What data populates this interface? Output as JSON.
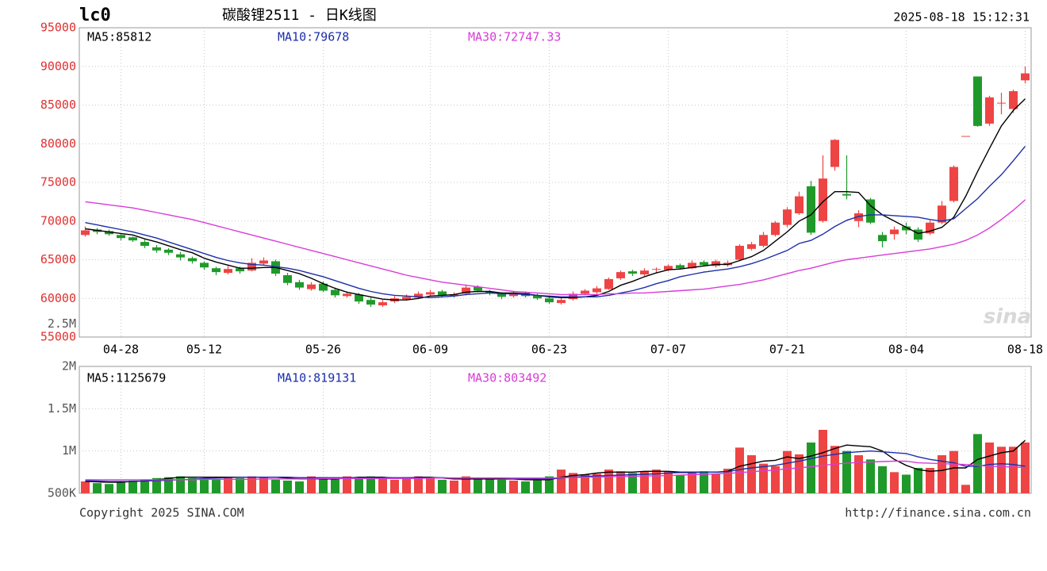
{
  "header": {
    "symbol": "lc0",
    "title": "碳酸锂2511 - 日K线图",
    "timestamp": "2025-08-18 15:12:31"
  },
  "footer": {
    "copyright": "Copyright 2025 SINA.COM",
    "url": "http://finance.sina.com.cn"
  },
  "chart_data": [
    {
      "type": "candlestick",
      "watermark": "sina",
      "categories": [
        null,
        null,
        null,
        "04-28",
        null,
        null,
        null,
        null,
        null,
        null,
        "05-12",
        null,
        null,
        null,
        null,
        null,
        null,
        null,
        null,
        null,
        "05-26",
        null,
        null,
        null,
        null,
        null,
        null,
        null,
        null,
        "06-09",
        null,
        null,
        null,
        null,
        null,
        null,
        null,
        null,
        null,
        "06-23",
        null,
        null,
        null,
        null,
        null,
        null,
        null,
        null,
        null,
        "07-07",
        null,
        null,
        null,
        null,
        null,
        null,
        null,
        null,
        null,
        "07-21",
        null,
        null,
        null,
        null,
        null,
        null,
        null,
        null,
        null,
        "08-04",
        null,
        null,
        null,
        null,
        null,
        null,
        null,
        null,
        null,
        "08-18"
      ],
      "open": [
        68200,
        68900,
        68700,
        68200,
        67900,
        67300,
        66600,
        66300,
        65700,
        65200,
        64600,
        63900,
        63300,
        63900,
        63600,
        64500,
        64800,
        63000,
        62100,
        61200,
        61900,
        61100,
        60300,
        60500,
        59800,
        59100,
        59600,
        59900,
        60100,
        60500,
        60900,
        60300,
        60600,
        61500,
        60900,
        60600,
        60300,
        60700,
        60400,
        60000,
        59400,
        59900,
        60600,
        60800,
        61200,
        62600,
        63500,
        63100,
        63700,
        63700,
        64300,
        63900,
        64700,
        64200,
        64300,
        65000,
        66400,
        66800,
        68200,
        69500,
        71000,
        74500,
        70000,
        77000,
        73500,
        70000,
        72800,
        68200,
        68300,
        69300,
        68900,
        68400,
        69800,
        72600,
        81000,
        88700,
        82600,
        85200,
        84500,
        88200
      ],
      "high": [
        69300,
        69100,
        68900,
        68400,
        68000,
        67600,
        66900,
        66500,
        66000,
        65400,
        64800,
        64100,
        64200,
        64100,
        65200,
        65300,
        65000,
        63300,
        62400,
        62100,
        62200,
        61400,
        60900,
        60700,
        60100,
        59800,
        60300,
        60500,
        60900,
        61100,
        61100,
        60800,
        61800,
        61700,
        61100,
        60800,
        60900,
        60900,
        60600,
        60300,
        60100,
        60900,
        61200,
        61600,
        62700,
        63600,
        63700,
        63900,
        64000,
        64400,
        64500,
        64900,
        64900,
        65000,
        64900,
        67000,
        67300,
        68600,
        70000,
        71800,
        73800,
        75200,
        78500,
        80600,
        78500,
        71400,
        73000,
        68600,
        69300,
        69800,
        69200,
        70100,
        72600,
        77200,
        81000,
        88700,
        86200,
        86600,
        87000,
        90000
      ],
      "low": [
        68000,
        68300,
        68100,
        67500,
        67300,
        66500,
        65900,
        65600,
        64900,
        64500,
        63700,
        63000,
        63100,
        63200,
        63500,
        64300,
        62900,
        61700,
        61100,
        61000,
        60800,
        60100,
        60100,
        59300,
        58900,
        58900,
        59400,
        59700,
        59900,
        60300,
        60100,
        60100,
        60400,
        60800,
        60400,
        59900,
        60100,
        60100,
        59800,
        59300,
        59200,
        59700,
        60400,
        60600,
        61100,
        62400,
        62900,
        62900,
        63300,
        63500,
        63700,
        63800,
        64100,
        64000,
        64100,
        64800,
        66200,
        66600,
        68000,
        69200,
        70800,
        68200,
        69800,
        76500,
        72800,
        69200,
        69600,
        66600,
        67600,
        68300,
        67300,
        68200,
        69600,
        72400,
        81000,
        82200,
        82300,
        83800,
        84000,
        87800
      ],
      "close": [
        68800,
        68600,
        68300,
        67800,
        67500,
        66800,
        66200,
        65900,
        65300,
        64800,
        64000,
        63400,
        63800,
        63500,
        64600,
        64900,
        63200,
        62000,
        61400,
        61800,
        61000,
        60400,
        60600,
        59600,
        59200,
        59500,
        60000,
        60200,
        60600,
        60800,
        60400,
        60500,
        61400,
        61000,
        60700,
        60200,
        60600,
        60300,
        60000,
        59500,
        59800,
        60600,
        61000,
        61300,
        62500,
        63400,
        63200,
        63600,
        63800,
        64200,
        63900,
        64600,
        64300,
        64800,
        64600,
        66800,
        67000,
        68200,
        69800,
        71500,
        73200,
        68500,
        75500,
        80500,
        73300,
        71000,
        69800,
        67400,
        68900,
        68800,
        67600,
        69800,
        72000,
        77000,
        81000,
        82300,
        86000,
        85300,
        86800,
        89100
      ],
      "up_color": "#ee4444",
      "down_color": "#1f9a2a",
      "series": [
        {
          "name": "MA5:85812",
          "color": "#000000",
          "values": [
            69000,
            68800,
            68600,
            68400,
            68200,
            67700,
            67300,
            66800,
            66300,
            65900,
            65200,
            64700,
            64300,
            63900,
            63900,
            64000,
            64000,
            63600,
            63200,
            62600,
            61900,
            61300,
            60800,
            60500,
            60200,
            59900,
            59800,
            59800,
            60000,
            60300,
            60400,
            60500,
            60800,
            60900,
            60900,
            60700,
            60700,
            60600,
            60400,
            60200,
            60100,
            60100,
            60200,
            60400,
            60900,
            61700,
            62200,
            62800,
            63300,
            63700,
            63800,
            64000,
            64200,
            64400,
            64400,
            64900,
            65400,
            66200,
            67400,
            68600,
            70000,
            70800,
            72500,
            73800,
            73800,
            73700,
            72000,
            70800,
            70000,
            69200,
            68400,
            68700,
            69200,
            70500,
            73200,
            76400,
            79400,
            82300,
            84300,
            85812
          ]
        },
        {
          "name": "MA10:79678",
          "color": "#1c2fa8",
          "values": [
            69800,
            69500,
            69200,
            68900,
            68600,
            68200,
            67800,
            67300,
            66800,
            66300,
            65800,
            65300,
            64900,
            64600,
            64400,
            64300,
            64100,
            63900,
            63600,
            63200,
            62800,
            62300,
            61800,
            61300,
            60900,
            60600,
            60400,
            60300,
            60200,
            60100,
            60200,
            60300,
            60500,
            60600,
            60700,
            60600,
            60600,
            60500,
            60400,
            60300,
            60200,
            60200,
            60200,
            60200,
            60400,
            60700,
            61000,
            61400,
            61900,
            62300,
            62800,
            63100,
            63400,
            63600,
            63800,
            64100,
            64500,
            65000,
            65600,
            66200,
            67100,
            67500,
            68300,
            69300,
            70100,
            70600,
            70800,
            70800,
            70700,
            70600,
            70500,
            70200,
            70000,
            70300,
            71600,
            72900,
            74500,
            76000,
            77800,
            79678
          ]
        },
        {
          "name": "MA30:72747.33",
          "color": "#d83cd8",
          "values": [
            72500,
            72300,
            72100,
            71900,
            71700,
            71400,
            71100,
            70800,
            70500,
            70200,
            69800,
            69400,
            69000,
            68600,
            68200,
            67800,
            67400,
            67000,
            66600,
            66200,
            65800,
            65400,
            65000,
            64600,
            64200,
            63800,
            63400,
            63000,
            62700,
            62400,
            62100,
            61900,
            61700,
            61500,
            61300,
            61100,
            60900,
            60800,
            60700,
            60600,
            60500,
            60500,
            60500,
            60500,
            60600,
            60600,
            60700,
            60700,
            60800,
            60900,
            61000,
            61100,
            61200,
            61400,
            61600,
            61800,
            62100,
            62400,
            62800,
            63200,
            63600,
            63900,
            64300,
            64700,
            65000,
            65200,
            65400,
            65600,
            65800,
            66000,
            66200,
            66400,
            66700,
            67000,
            67500,
            68200,
            69100,
            70200,
            71400,
            72747.33
          ]
        }
      ],
      "ylim": [
        55000,
        95000
      ],
      "yticks": [
        55000,
        60000,
        65000,
        70000,
        75000,
        80000,
        85000,
        90000,
        95000
      ],
      "grid": true
    },
    {
      "type": "bar",
      "values": [
        640000,
        620000,
        610000,
        630000,
        650000,
        660000,
        680000,
        690000,
        700000,
        680000,
        670000,
        660000,
        690000,
        680000,
        700000,
        690000,
        660000,
        650000,
        640000,
        700000,
        690000,
        680000,
        700000,
        690000,
        700000,
        670000,
        660000,
        690000,
        700000,
        680000,
        660000,
        650000,
        700000,
        680000,
        670000,
        660000,
        650000,
        640000,
        660000,
        700000,
        780000,
        740000,
        720000,
        730000,
        780000,
        760000,
        740000,
        760000,
        780000,
        760000,
        720000,
        740000,
        760000,
        730000,
        790000,
        1040000,
        950000,
        850000,
        820000,
        1000000,
        960000,
        1100000,
        1250000,
        1060000,
        1000000,
        950000,
        900000,
        820000,
        750000,
        720000,
        800000,
        800000,
        950000,
        1000000,
        600000,
        1200000,
        1100000,
        1050000,
        1050000,
        1100000
      ],
      "series": [
        {
          "name": "MA5:1125679",
          "color": "#000000",
          "values": [
            640000,
            635000,
            630000,
            630000,
            640000,
            645000,
            660000,
            675000,
            690000,
            690000,
            690000,
            690000,
            690000,
            690000,
            690000,
            690000,
            690000,
            680000,
            670000,
            670000,
            670000,
            670000,
            680000,
            690000,
            690000,
            690000,
            680000,
            680000,
            690000,
            690000,
            680000,
            670000,
            670000,
            670000,
            670000,
            670000,
            670000,
            660000,
            660000,
            660000,
            690000,
            710000,
            720000,
            740000,
            750000,
            750000,
            750000,
            760000,
            760000,
            760000,
            750000,
            750000,
            750000,
            750000,
            760000,
            820000,
            850000,
            880000,
            890000,
            930000,
            910000,
            940000,
            980000,
            1030000,
            1070000,
            1060000,
            1050000,
            1000000,
            900000,
            830000,
            780000,
            760000,
            770000,
            800000,
            800000,
            900000,
            940000,
            980000,
            1000000,
            1125679
          ]
        },
        {
          "name": "MA10:819131",
          "color": "#1c2fa8",
          "values": [
            650000,
            645000,
            640000,
            640000,
            640000,
            645000,
            650000,
            655000,
            660000,
            665000,
            675000,
            680000,
            685000,
            690000,
            690000,
            690000,
            690000,
            690000,
            685000,
            685000,
            685000,
            685000,
            685000,
            685000,
            685000,
            685000,
            685000,
            685000,
            685000,
            685000,
            685000,
            680000,
            680000,
            680000,
            680000,
            680000,
            675000,
            670000,
            670000,
            670000,
            680000,
            690000,
            700000,
            705000,
            710000,
            715000,
            720000,
            725000,
            730000,
            740000,
            745000,
            745000,
            750000,
            750000,
            755000,
            780000,
            800000,
            815000,
            830000,
            855000,
            880000,
            910000,
            940000,
            960000,
            980000,
            990000,
            1000000,
            990000,
            980000,
            970000,
            930000,
            900000,
            880000,
            860000,
            820000,
            820000,
            840000,
            850000,
            840000,
            819131
          ]
        },
        {
          "name": "MA30:803492",
          "color": "#d83cd8",
          "values": [
            660000,
            660000,
            660000,
            660000,
            660000,
            660000,
            660000,
            660000,
            660000,
            660000,
            665000,
            665000,
            665000,
            665000,
            665000,
            670000,
            670000,
            670000,
            670000,
            670000,
            675000,
            675000,
            675000,
            675000,
            675000,
            675000,
            675000,
            675000,
            675000,
            680000,
            680000,
            680000,
            680000,
            680000,
            680000,
            680000,
            680000,
            680000,
            680000,
            680000,
            685000,
            685000,
            690000,
            690000,
            695000,
            700000,
            700000,
            705000,
            705000,
            710000,
            715000,
            720000,
            725000,
            730000,
            735000,
            745000,
            755000,
            765000,
            775000,
            790000,
            800000,
            815000,
            830000,
            845000,
            855000,
            865000,
            870000,
            875000,
            880000,
            880000,
            860000,
            855000,
            850000,
            845000,
            840000,
            830000,
            820000,
            815000,
            810000,
            803492
          ]
        }
      ],
      "ylim": [
        500000,
        2000000
      ],
      "yticks": [
        {
          "value": 500000,
          "label": "500K"
        },
        {
          "value": 1000000,
          "label": "1M"
        },
        {
          "value": 1500000,
          "label": "1.5M"
        },
        {
          "value": 2000000,
          "label": "2M"
        },
        {
          "value": 2500000,
          "label": "2.5M"
        }
      ],
      "grid": true
    }
  ]
}
